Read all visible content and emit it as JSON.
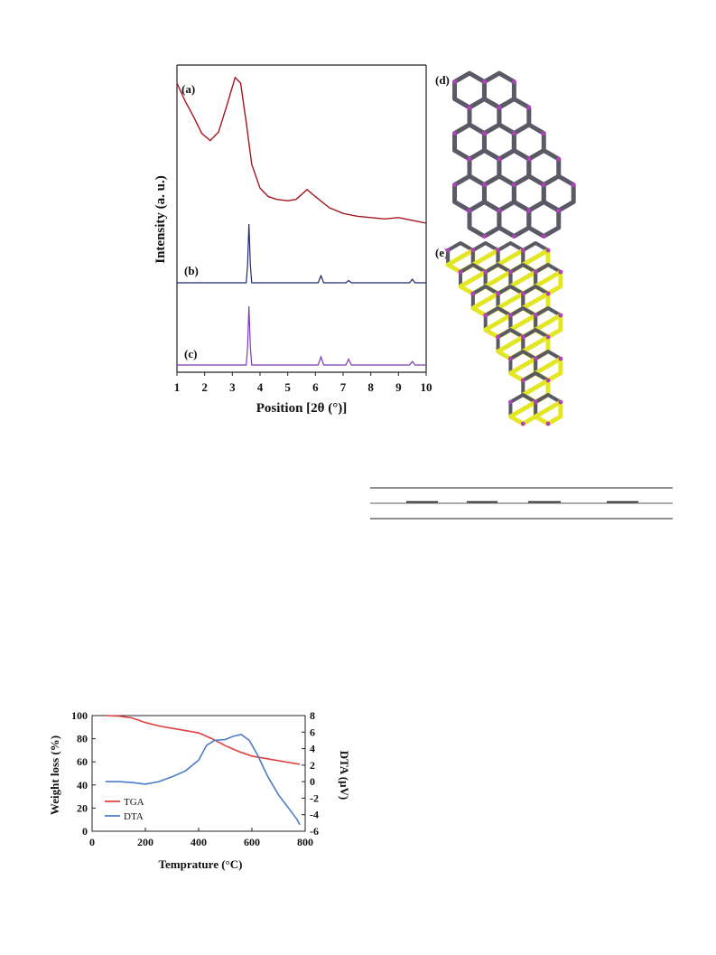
{
  "xrd_figure": {
    "panel_labels": {
      "a": "(a)",
      "b": "(b)",
      "c": "(c)",
      "d": "(d)",
      "e": "(e)"
    },
    "structure_colors": {
      "framework": "#5a5a66",
      "node": "#b23fbf",
      "guest": "#e3e625"
    },
    "chart_data": {
      "type": "line",
      "xlabel": "Position [2θ (°)]",
      "ylabel": "Intensity (a. u.)",
      "xlim": [
        1,
        10
      ],
      "xticks": [
        "1",
        "2",
        "3",
        "4",
        "5",
        "6",
        "7",
        "8",
        "9",
        "10"
      ],
      "series": [
        {
          "key": "a",
          "color": "#a4171c",
          "x": [
            1.0,
            1.3,
            1.6,
            1.9,
            2.2,
            2.5,
            2.8,
            3.1,
            3.3,
            3.5,
            3.7,
            4.0,
            4.3,
            4.6,
            5.0,
            5.3,
            5.7,
            6.0,
            6.5,
            7.0,
            7.5,
            8.0,
            8.5,
            9.0,
            9.5,
            10.0
          ],
          "y": [
            1.0,
            0.87,
            0.76,
            0.64,
            0.59,
            0.65,
            0.84,
            1.04,
            1.0,
            0.72,
            0.42,
            0.25,
            0.19,
            0.17,
            0.16,
            0.17,
            0.24,
            0.19,
            0.11,
            0.07,
            0.05,
            0.04,
            0.03,
            0.04,
            0.02,
            0.0
          ]
        },
        {
          "key": "b",
          "color": "#1f2a6e",
          "x": [
            1.0,
            3.5,
            3.55,
            3.6,
            3.65,
            3.7,
            6.1,
            6.2,
            6.3,
            7.1,
            7.2,
            7.3,
            9.4,
            9.5,
            9.6,
            10.0
          ],
          "y": [
            0.0,
            0.0,
            0.3,
            1.0,
            0.3,
            0.0,
            0.0,
            0.12,
            0.0,
            0.0,
            0.04,
            0.0,
            0.0,
            0.06,
            0.0,
            0.0
          ]
        },
        {
          "key": "c",
          "color": "#7d3ab5",
          "x": [
            1.0,
            3.5,
            3.55,
            3.6,
            3.65,
            3.7,
            6.1,
            6.2,
            6.3,
            7.1,
            7.2,
            7.3,
            9.4,
            9.5,
            9.6,
            10.0
          ],
          "y": [
            0.0,
            0.0,
            0.3,
            1.0,
            0.3,
            0.0,
            0.0,
            0.14,
            0.0,
            0.0,
            0.1,
            0.0,
            0.0,
            0.06,
            0.0,
            0.0
          ]
        }
      ]
    }
  },
  "tga_figure": {
    "chart_data": {
      "type": "line",
      "xlabel": "Temprature (°C)",
      "ylabel_left": "Weight loss (%)",
      "ylabel_right": "DTA (μV)",
      "xlim": [
        0,
        800
      ],
      "ylim_left": [
        0,
        100
      ],
      "ylim_right": [
        -6,
        8
      ],
      "xticks": [
        "0",
        "200",
        "400",
        "600",
        "800"
      ],
      "yticks_left": [
        "0",
        "20",
        "40",
        "60",
        "80",
        "100"
      ],
      "yticks_right": [
        "-6",
        "-4",
        "-2",
        "0",
        "2",
        "4",
        "6",
        "8"
      ],
      "legend": [
        "TGA",
        "DTA"
      ],
      "series": [
        {
          "name": "TGA",
          "axis": "left",
          "color": "#e0403e",
          "x": [
            50,
            100,
            150,
            200,
            250,
            300,
            350,
            400,
            450,
            500,
            550,
            600,
            650,
            700,
            750,
            780
          ],
          "y": [
            100,
            99.5,
            98,
            94,
            91,
            89,
            87,
            85,
            80,
            74,
            69,
            65,
            63,
            61,
            59,
            58
          ]
        },
        {
          "name": "DTA",
          "axis": "right",
          "color": "#4a7bc8",
          "x": [
            50,
            100,
            150,
            200,
            250,
            300,
            350,
            400,
            430,
            460,
            500,
            530,
            560,
            590,
            620,
            660,
            700,
            740,
            770,
            780
          ],
          "y": [
            0.0,
            0.0,
            -0.1,
            -0.3,
            0.0,
            0.6,
            1.3,
            2.6,
            4.4,
            5.0,
            5.1,
            5.5,
            5.7,
            5.0,
            3.3,
            0.6,
            -1.6,
            -3.3,
            -4.6,
            -5.2
          ]
        }
      ]
    }
  }
}
